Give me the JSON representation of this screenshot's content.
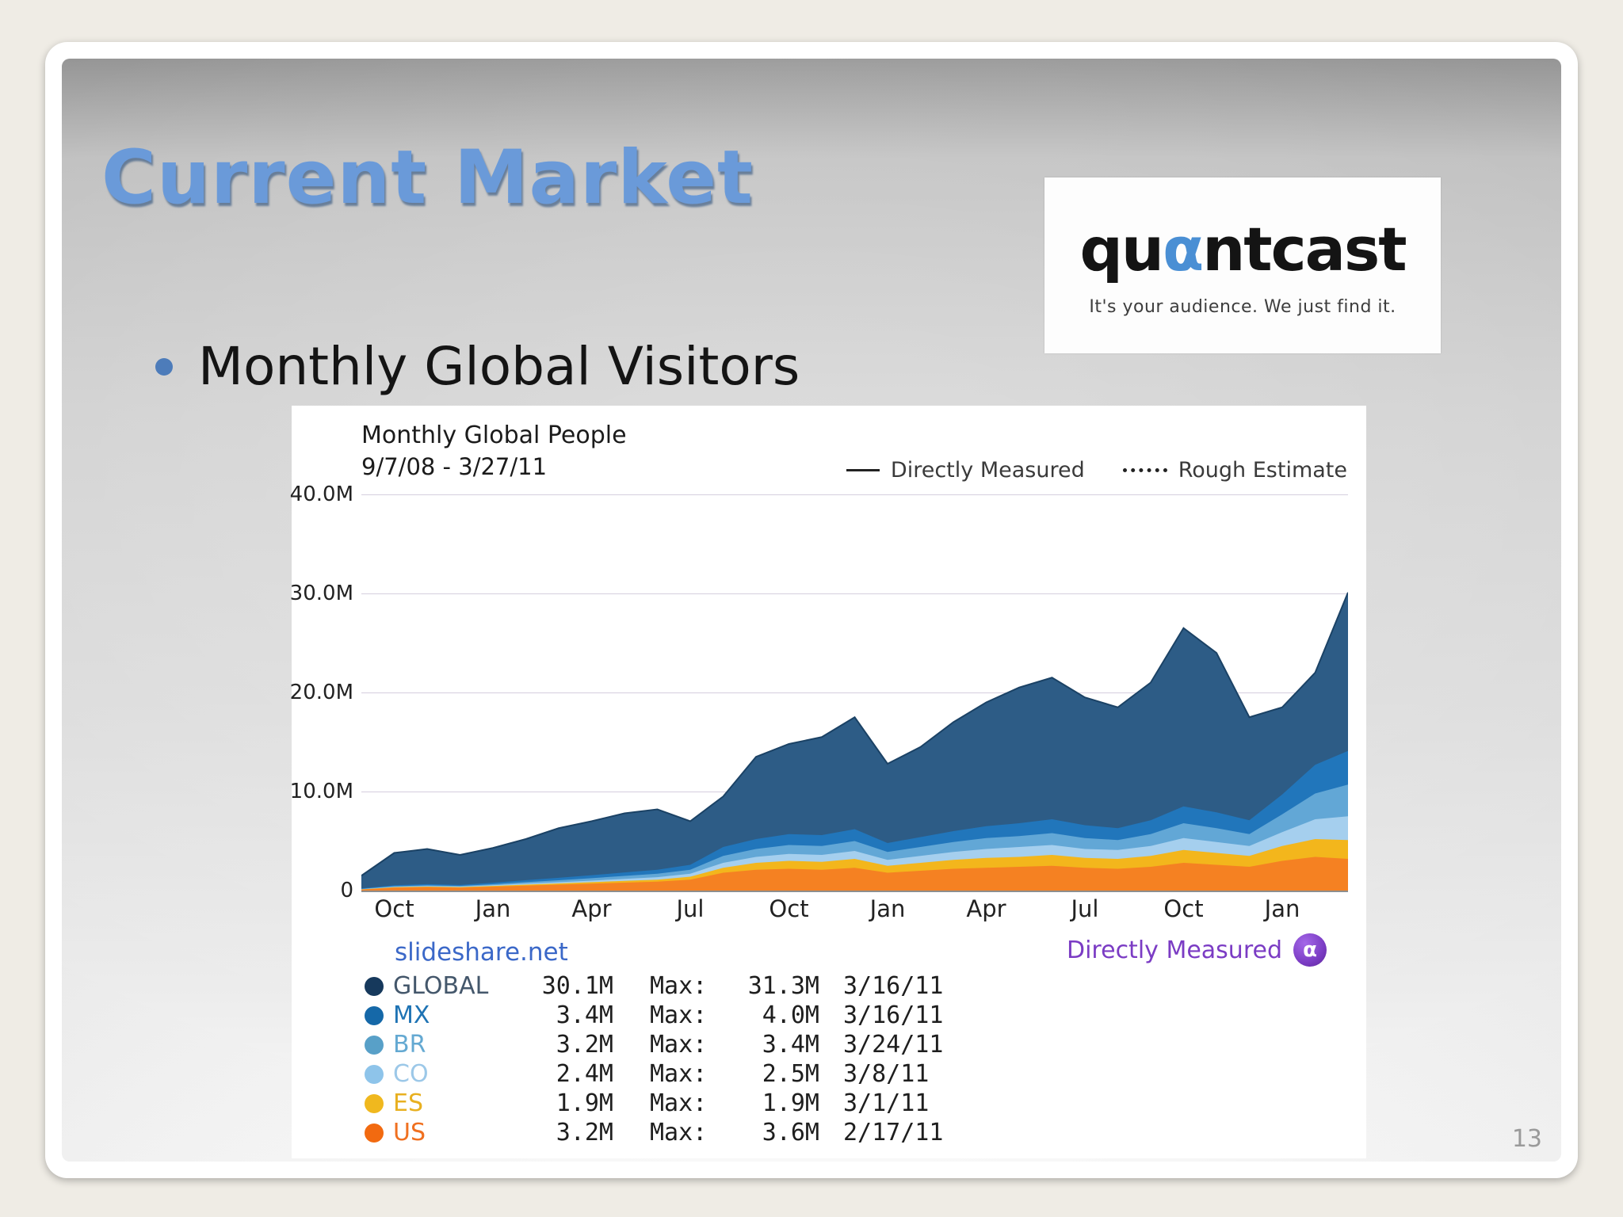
{
  "slide": {
    "title": "Current Market",
    "bullet": "Monthly Global Visitors",
    "page_number": "13"
  },
  "logo": {
    "brand_pre": "qu",
    "brand_alpha": "α",
    "brand_post": "ntcast",
    "tagline": "It's your audience.  We just find it."
  },
  "chart_data": {
    "type": "area",
    "title": "Monthly Global People",
    "date_range": "9/7/08 - 3/27/11",
    "legend": {
      "solid": "Directly Measured",
      "dotted": "Rough Estimate"
    },
    "site": "slideshare.net",
    "measured_label": "Directly Measured",
    "alpha_badge": "α",
    "ylim": [
      0,
      40
    ],
    "y_ticks": [
      {
        "label": "40.0M",
        "value": 40
      },
      {
        "label": "30.0M",
        "value": 30
      },
      {
        "label": "20.0M",
        "value": 20
      },
      {
        "label": "10.0M",
        "value": 10
      },
      {
        "label": "0",
        "value": 0
      }
    ],
    "x_ticks": [
      {
        "label": "Oct",
        "index": 1
      },
      {
        "label": "Jan",
        "index": 4
      },
      {
        "label": "Apr",
        "index": 7
      },
      {
        "label": "Jul",
        "index": 10
      },
      {
        "label": "Oct",
        "index": 13
      },
      {
        "label": "Jan",
        "index": 16
      },
      {
        "label": "Apr",
        "index": 19
      },
      {
        "label": "Jul",
        "index": 22
      },
      {
        "label": "Oct",
        "index": 25
      },
      {
        "label": "Jan",
        "index": 28
      }
    ],
    "stack_order": [
      "US",
      "ES",
      "CO",
      "BR",
      "MX"
    ],
    "series": [
      {
        "name": "GLOBAL",
        "role": "total",
        "color": "#2d5c86",
        "line_color": "#1b4265",
        "values": [
          1.5,
          3.8,
          4.2,
          3.6,
          4.3,
          5.2,
          6.3,
          7.0,
          7.8,
          8.2,
          7.0,
          9.5,
          13.5,
          14.8,
          15.5,
          17.5,
          12.8,
          14.5,
          17.0,
          19.0,
          20.5,
          21.5,
          19.5,
          18.5,
          21.0,
          26.5,
          24.0,
          17.5,
          18.5,
          22.0,
          30.1
        ]
      },
      {
        "name": "MX",
        "color": "#2176bb",
        "values": [
          0.05,
          0.1,
          0.12,
          0.1,
          0.15,
          0.2,
          0.25,
          0.3,
          0.35,
          0.4,
          0.5,
          0.9,
          1.0,
          1.1,
          1.1,
          1.2,
          0.9,
          1.0,
          1.1,
          1.2,
          1.3,
          1.4,
          1.3,
          1.2,
          1.4,
          1.7,
          1.6,
          1.4,
          2.0,
          2.9,
          3.4
        ]
      },
      {
        "name": "BR",
        "color": "#62a7d6",
        "values": [
          0.03,
          0.06,
          0.08,
          0.07,
          0.1,
          0.15,
          0.2,
          0.25,
          0.3,
          0.35,
          0.4,
          0.7,
          0.8,
          0.9,
          0.9,
          1.0,
          0.8,
          0.9,
          1.0,
          1.1,
          1.1,
          1.2,
          1.1,
          1.0,
          1.2,
          1.5,
          1.4,
          1.2,
          1.8,
          2.6,
          3.2
        ]
      },
      {
        "name": "CO",
        "color": "#a5cfee",
        "values": [
          0.02,
          0.04,
          0.05,
          0.05,
          0.07,
          0.1,
          0.12,
          0.15,
          0.2,
          0.25,
          0.3,
          0.5,
          0.6,
          0.7,
          0.7,
          0.8,
          0.6,
          0.7,
          0.8,
          0.9,
          1.0,
          1.0,
          0.9,
          0.9,
          1.0,
          1.2,
          1.1,
          1.0,
          1.4,
          2.0,
          2.4
        ]
      },
      {
        "name": "ES",
        "color": "#f3b61c",
        "values": [
          0.02,
          0.04,
          0.05,
          0.05,
          0.07,
          0.1,
          0.12,
          0.15,
          0.18,
          0.2,
          0.3,
          0.5,
          0.7,
          0.8,
          0.8,
          0.9,
          0.7,
          0.8,
          0.9,
          1.0,
          1.0,
          1.1,
          1.0,
          1.0,
          1.1,
          1.3,
          1.2,
          1.1,
          1.5,
          1.8,
          1.9
        ]
      },
      {
        "name": "US",
        "color": "#f58122",
        "values": [
          0.1,
          0.3,
          0.35,
          0.3,
          0.4,
          0.5,
          0.6,
          0.7,
          0.8,
          0.9,
          1.1,
          1.8,
          2.1,
          2.2,
          2.1,
          2.3,
          1.8,
          2.0,
          2.2,
          2.3,
          2.4,
          2.5,
          2.3,
          2.2,
          2.4,
          2.8,
          2.6,
          2.4,
          3.0,
          3.4,
          3.2
        ]
      }
    ],
    "table": {
      "max_label": "Max:",
      "rows": [
        {
          "name": "GLOBAL",
          "dot_color": "#16395c",
          "name_color": "#44576b",
          "value": "30.1M",
          "max": "31.3M",
          "date": "3/16/11"
        },
        {
          "name": "MX",
          "dot_color": "#1568a8",
          "name_color": "#1e73b4",
          "value": "3.4M",
          "max": "4.0M",
          "date": "3/16/11"
        },
        {
          "name": "BR",
          "dot_color": "#58a0c8",
          "name_color": "#64a9d2",
          "value": "3.2M",
          "max": "3.4M",
          "date": "3/24/11"
        },
        {
          "name": "CO",
          "dot_color": "#8ec4ea",
          "name_color": "#9cc8e8",
          "value": "2.4M",
          "max": "2.5M",
          "date": "3/8/11"
        },
        {
          "name": "ES",
          "dot_color": "#f0b81e",
          "name_color": "#e8b020",
          "value": "1.9M",
          "max": "1.9M",
          "date": "3/1/11"
        },
        {
          "name": "US",
          "dot_color": "#f26a10",
          "name_color": "#f07020",
          "value": "3.2M",
          "max": "3.6M",
          "date": "2/17/11"
        }
      ]
    }
  }
}
